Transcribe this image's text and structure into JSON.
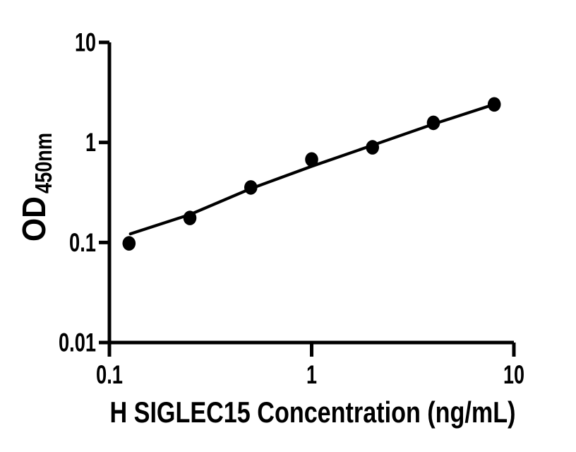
{
  "figure": {
    "background": "#ffffff",
    "ink_color": "#000000"
  },
  "chart_data": {
    "type": "scatter",
    "title": "",
    "xlabel": "H SIGLEC15 Concentration (ng/mL)",
    "ylabel_main": "OD",
    "ylabel_sub": "450nm",
    "x_scale": "log",
    "y_scale": "log",
    "xlim": [
      0.1,
      10
    ],
    "ylim": [
      0.01,
      10
    ],
    "grid": false,
    "legend": false,
    "x_axis": {
      "ticks": [
        {
          "value": 0.1,
          "label": "0.1"
        },
        {
          "value": 1,
          "label": "1"
        },
        {
          "value": 10,
          "label": "10"
        }
      ]
    },
    "y_axis": {
      "ticks": [
        {
          "value": 0.01,
          "label": "0.01"
        },
        {
          "value": 0.1,
          "label": "0.1"
        },
        {
          "value": 1,
          "label": "1"
        },
        {
          "value": 10,
          "label": "10"
        }
      ]
    },
    "series": [
      {
        "marker": "filled-circle",
        "color": "#000000",
        "points": [
          {
            "x": 0.125,
            "y": 0.098
          },
          {
            "x": 0.25,
            "y": 0.176
          },
          {
            "x": 0.5,
            "y": 0.355
          },
          {
            "x": 1,
            "y": 0.676
          },
          {
            "x": 2,
            "y": 0.893
          },
          {
            "x": 4,
            "y": 1.571
          },
          {
            "x": 8,
            "y": 2.4
          }
        ]
      }
    ],
    "fit_curve": {
      "color": "#000000",
      "points": [
        {
          "x": 0.127,
          "y": 0.122
        },
        {
          "x": 0.25,
          "y": 0.19
        },
        {
          "x": 0.5,
          "y": 0.345
        },
        {
          "x": 1,
          "y": 0.577
        },
        {
          "x": 2,
          "y": 0.937
        },
        {
          "x": 4,
          "y": 1.524
        },
        {
          "x": 8,
          "y": 2.4
        }
      ]
    }
  }
}
